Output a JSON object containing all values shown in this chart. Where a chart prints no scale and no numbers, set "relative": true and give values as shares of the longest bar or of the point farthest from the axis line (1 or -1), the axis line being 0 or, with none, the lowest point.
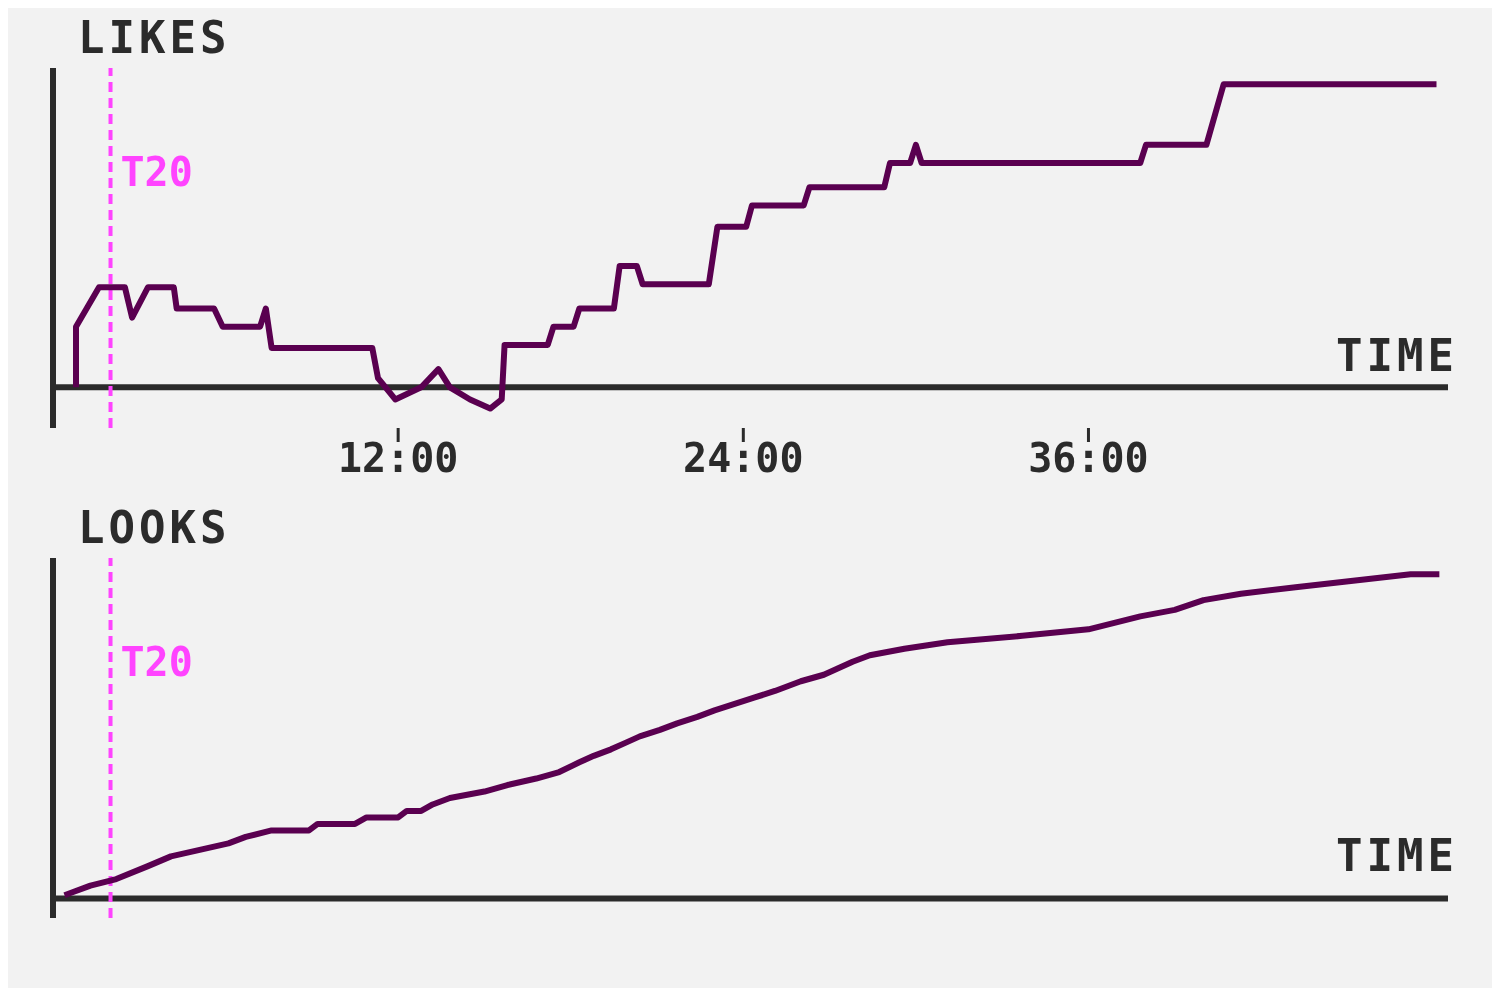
{
  "chart_data": [
    {
      "type": "line",
      "ylabel": "LIKES",
      "xlabel": "TIME",
      "relative": true,
      "color": "#5a0050",
      "tick_labels": "x",
      "marker": "none",
      "grid": false,
      "legend": false,
      "x": [
        0.8,
        0.8,
        1.6,
        2.5,
        2.75,
        3.3,
        4.2,
        4.3,
        5.6,
        5.9,
        7.2,
        7.4,
        7.6,
        11.1,
        11.3,
        11.9,
        12.8,
        13.4,
        13.8,
        14.5,
        15.2,
        15.6,
        15.7,
        17.2,
        17.4,
        18.1,
        18.3,
        19.5,
        19.7,
        20.3,
        20.5,
        22.8,
        23.1,
        24.1,
        24.3,
        26.1,
        26.3,
        28.9,
        29.1,
        29.8,
        30.0,
        30.2,
        37.8,
        38.0,
        40.1,
        40.7,
        48.1
      ],
      "values": [
        0,
        0.2,
        0.33,
        0.33,
        0.23,
        0.33,
        0.33,
        0.26,
        0.26,
        0.2,
        0.2,
        0.26,
        0.13,
        0.13,
        0.03,
        -0.04,
        0,
        0.06,
        0,
        -0.04,
        -0.07,
        -0.04,
        0.14,
        0.14,
        0.2,
        0.2,
        0.26,
        0.26,
        0.4,
        0.4,
        0.34,
        0.34,
        0.53,
        0.53,
        0.6,
        0.6,
        0.66,
        0.66,
        0.74,
        0.74,
        0.8,
        0.74,
        0.74,
        0.8,
        0.8,
        1,
        1
      ],
      "xlim": [
        0,
        48.5
      ],
      "xticks": [
        {
          "value": 12,
          "label": "12:00"
        },
        {
          "value": 24,
          "label": "24:00"
        },
        {
          "value": 36,
          "label": "36:00"
        }
      ],
      "ref_lines": [
        {
          "axis": "x",
          "value": 2,
          "label": "T20",
          "color": "#ff44ff",
          "line_style": "dashed"
        }
      ]
    },
    {
      "type": "line",
      "ylabel": "LOOKS",
      "xlabel": "TIME",
      "relative": true,
      "color": "#5a0050",
      "tick_labels": false,
      "marker": "none",
      "grid": false,
      "legend": false,
      "x": [
        0.4,
        0.7,
        1.3,
        2.2,
        3.3,
        4.1,
        5.1,
        6.1,
        6.7,
        7.6,
        8.9,
        9.2,
        10.5,
        10.9,
        12.0,
        12.3,
        12.8,
        13.2,
        13.8,
        15.0,
        15.8,
        16.8,
        17.6,
        18.3,
        18.8,
        19.4,
        19.9,
        20.4,
        21.1,
        21.7,
        22.4,
        23.0,
        23.7,
        24.4,
        25.1,
        26.0,
        26.8,
        27.3,
        27.8,
        28.4,
        29.6,
        31.1,
        33.7,
        36.0,
        36.9,
        37.8,
        39.0,
        40.0,
        41.3,
        43.2,
        45.2,
        47.2,
        48.2
      ],
      "values": [
        0.01,
        0.02,
        0.04,
        0.06,
        0.1,
        0.13,
        0.15,
        0.17,
        0.19,
        0.21,
        0.21,
        0.23,
        0.23,
        0.25,
        0.25,
        0.27,
        0.27,
        0.29,
        0.31,
        0.33,
        0.35,
        0.37,
        0.39,
        0.42,
        0.44,
        0.46,
        0.48,
        0.5,
        0.52,
        0.54,
        0.56,
        0.58,
        0.6,
        0.62,
        0.64,
        0.67,
        0.69,
        0.71,
        0.73,
        0.75,
        0.77,
        0.79,
        0.81,
        0.83,
        0.85,
        0.87,
        0.89,
        0.92,
        0.94,
        0.96,
        0.98,
        1,
        1
      ],
      "xlim": [
        0,
        48.5
      ],
      "xticks": [
        {
          "value": 12,
          "label": null
        },
        {
          "value": 24,
          "label": null
        },
        {
          "value": 36,
          "label": null
        }
      ],
      "ref_lines": [
        {
          "axis": "x",
          "value": 2,
          "label": "T20",
          "color": "#ff44ff",
          "line_style": "dashed"
        }
      ]
    }
  ]
}
